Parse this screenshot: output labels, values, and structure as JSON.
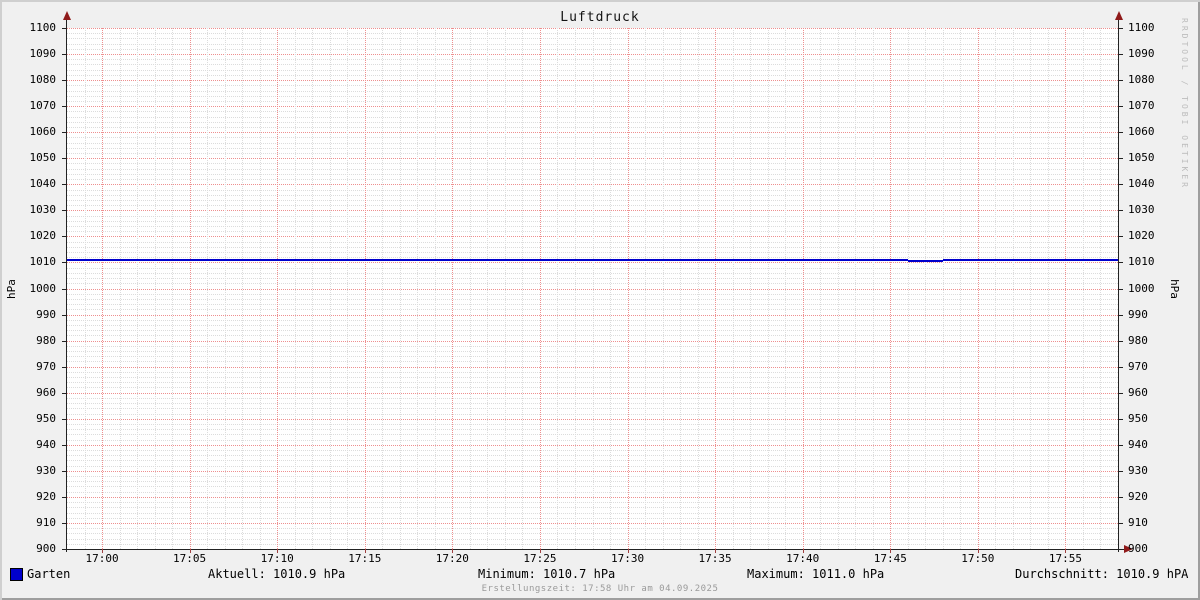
{
  "title": "Luftdruck",
  "watermark": "RRDTOOL / TOBI OETIKER",
  "footer": "Erstellungszeit: 17:58 Uhr am 04.09.2025",
  "y_axis": {
    "unit_left": "hPa",
    "unit_right": "hPa",
    "min": 900,
    "max": 1100,
    "major_step": 10,
    "minor_step": 2
  },
  "x_axis": {
    "start": "16:58",
    "end": "17:58",
    "major_step_min": 5,
    "minor_step_min": 1,
    "tick_labels": [
      "17:00",
      "17:05",
      "17:10",
      "17:15",
      "17:20",
      "17:25",
      "17:30",
      "17:35",
      "17:40",
      "17:45",
      "17:50",
      "17:55"
    ]
  },
  "legend": {
    "swatch_color": "#0000cc",
    "series": "Garten",
    "aktuell": "Aktuell: 1010.9 hPa",
    "minimum": "Minimum: 1010.7 hPa",
    "maximum": "Maximum: 1011.0 hPa",
    "durchschnitt": "Durchschnitt: 1010.9 hPA"
  },
  "colors": {
    "background": "#f0f0f0",
    "canvas": "#ffffff",
    "grid_major": "#ee8f8f",
    "grid_minor": "#dcdcdc",
    "axis": "#222222",
    "arrow": "#8f1a1a",
    "series": "#0000cc"
  },
  "chart_data": {
    "type": "line",
    "title": "Luftdruck",
    "ylabel": "hPa",
    "ylim": [
      900,
      1100
    ],
    "x_range": [
      "16:58",
      "17:58"
    ],
    "xticks": [
      "17:00",
      "17:05",
      "17:10",
      "17:15",
      "17:20",
      "17:25",
      "17:30",
      "17:35",
      "17:40",
      "17:45",
      "17:50",
      "17:55"
    ],
    "grid": true,
    "legend_position": "bottom",
    "series": [
      {
        "name": "Garten",
        "color": "#0000cc",
        "points": [
          {
            "t": "16:58",
            "v": 1010.9
          },
          {
            "t": "17:46",
            "v": 1010.9
          },
          {
            "t": "17:46",
            "v": 1010.7
          },
          {
            "t": "17:48",
            "v": 1010.7
          },
          {
            "t": "17:48",
            "v": 1010.9
          },
          {
            "t": "17:58",
            "v": 1010.9
          }
        ]
      }
    ],
    "stats": {
      "current": 1010.9,
      "minimum": 1010.7,
      "maximum": 1011.0,
      "average": 1010.9
    }
  }
}
